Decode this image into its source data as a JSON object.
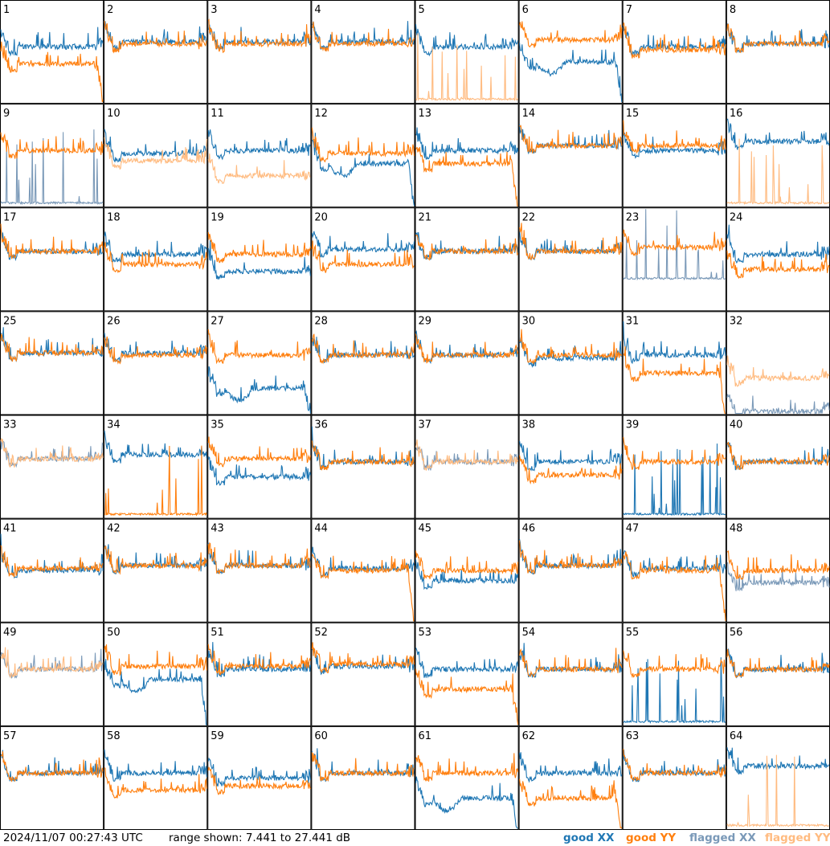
{
  "footer": {
    "timestamp": "2024/11/07 00:27:43 UTC",
    "range_label": "range shown:",
    "range_min": "7.441",
    "range_to": "to",
    "range_max": "27.441",
    "range_unit": "dB"
  },
  "legend": {
    "good_xx": "good XX",
    "good_yy": "good YY",
    "flagged_xx": "flagged XX",
    "flagged_yy": "flagged YY"
  },
  "colors": {
    "good_xx": "#1f77b4",
    "good_yy": "#ff7f0e",
    "flagged_xx": "#7a99b8",
    "flagged_yy": "#ffbb80"
  },
  "chart_data": {
    "type": "line",
    "layout": "small-multiples 8x8",
    "ylim": [
      7.441,
      27.441
    ],
    "y_unit": "dB",
    "grid": false,
    "legend_position": "bottom-right",
    "series_names": [
      "good XX",
      "good YY",
      "flagged XX",
      "flagged YY"
    ],
    "panels": [
      {
        "label": "1",
        "xx_state": "good",
        "yy_state": "good",
        "xx_level": 0.55,
        "yy_level": 0.38,
        "yy_dropout": true
      },
      {
        "label": "2",
        "xx_state": "good",
        "yy_state": "good",
        "xx_level": 0.6,
        "yy_level": 0.58
      },
      {
        "label": "3",
        "xx_state": "good",
        "yy_state": "good",
        "xx_level": 0.6,
        "yy_level": 0.58
      },
      {
        "label": "4",
        "xx_state": "good",
        "yy_state": "good",
        "xx_level": 0.6,
        "yy_level": 0.58
      },
      {
        "label": "5",
        "xx_state": "good",
        "yy_state": "flagged",
        "xx_level": 0.55,
        "yy_level": 0.02,
        "yy_spiky_floor": true
      },
      {
        "label": "6",
        "xx_state": "good",
        "yy_state": "good",
        "xx_level": 0.4,
        "yy_level": 0.62,
        "xx_dropout": true
      },
      {
        "label": "7",
        "xx_state": "good",
        "yy_state": "good",
        "xx_level": 0.55,
        "yy_level": 0.52
      },
      {
        "label": "8",
        "xx_state": "good",
        "yy_state": "good",
        "xx_level": 0.58,
        "yy_level": 0.58
      },
      {
        "label": "9",
        "xx_state": "flagged",
        "yy_state": "good",
        "xx_level": 0.02,
        "yy_level": 0.55,
        "xx_spiky_floor": true
      },
      {
        "label": "10",
        "xx_state": "good",
        "yy_state": "flagged",
        "xx_level": 0.52,
        "yy_level": 0.45
      },
      {
        "label": "11",
        "xx_state": "good",
        "yy_state": "flagged",
        "xx_level": 0.55,
        "yy_level": 0.3
      },
      {
        "label": "12",
        "xx_state": "good",
        "yy_state": "good",
        "xx_level": 0.42,
        "yy_level": 0.52,
        "xx_dropout": true
      },
      {
        "label": "13",
        "xx_state": "good",
        "yy_state": "good",
        "xx_level": 0.55,
        "yy_level": 0.42,
        "yy_dropout": true
      },
      {
        "label": "14",
        "xx_state": "good",
        "yy_state": "good",
        "xx_level": 0.6,
        "yy_level": 0.6
      },
      {
        "label": "15",
        "xx_state": "good",
        "yy_state": "good",
        "xx_level": 0.55,
        "yy_level": 0.6
      },
      {
        "label": "16",
        "xx_state": "good",
        "yy_state": "flagged",
        "xx_level": 0.64,
        "yy_level": 0.02,
        "yy_spiky_floor": true
      },
      {
        "label": "17",
        "xx_state": "good",
        "yy_state": "good",
        "xx_level": 0.58,
        "yy_level": 0.58
      },
      {
        "label": "18",
        "xx_state": "good",
        "yy_state": "good",
        "xx_level": 0.55,
        "yy_level": 0.45
      },
      {
        "label": "19",
        "xx_state": "good",
        "yy_state": "good",
        "xx_level": 0.38,
        "yy_level": 0.55
      },
      {
        "label": "20",
        "xx_state": "good",
        "yy_state": "good",
        "xx_level": 0.6,
        "yy_level": 0.45
      },
      {
        "label": "21",
        "xx_state": "good",
        "yy_state": "good",
        "xx_level": 0.58,
        "yy_level": 0.58
      },
      {
        "label": "22",
        "xx_state": "good",
        "yy_state": "good",
        "xx_level": 0.58,
        "yy_level": 0.58
      },
      {
        "label": "23",
        "xx_state": "flagged",
        "yy_state": "good",
        "xx_level": 0.3,
        "yy_level": 0.62,
        "xx_spiky_floor": true
      },
      {
        "label": "24",
        "xx_state": "good",
        "yy_state": "good",
        "xx_level": 0.55,
        "yy_level": 0.4
      },
      {
        "label": "25",
        "xx_state": "good",
        "yy_state": "good",
        "xx_level": 0.6,
        "yy_level": 0.6
      },
      {
        "label": "26",
        "xx_state": "good",
        "yy_state": "good",
        "xx_level": 0.6,
        "yy_level": 0.58
      },
      {
        "label": "27",
        "xx_state": "good",
        "yy_state": "good",
        "xx_level": 0.25,
        "yy_level": 0.58,
        "xx_dropout": true
      },
      {
        "label": "28",
        "xx_state": "good",
        "yy_state": "good",
        "xx_level": 0.58,
        "yy_level": 0.58
      },
      {
        "label": "29",
        "xx_state": "good",
        "yy_state": "good",
        "xx_level": 0.58,
        "yy_level": 0.58
      },
      {
        "label": "30",
        "xx_state": "good",
        "yy_state": "good",
        "xx_level": 0.55,
        "yy_level": 0.58
      },
      {
        "label": "31",
        "xx_state": "good",
        "yy_state": "good",
        "xx_level": 0.58,
        "yy_level": 0.4,
        "yy_dropout": true
      },
      {
        "label": "32",
        "xx_state": "flagged",
        "yy_state": "flagged",
        "xx_level": 0.02,
        "yy_level": 0.35
      },
      {
        "label": "33",
        "xx_state": "flagged",
        "yy_state": "flagged",
        "xx_level": 0.58,
        "yy_level": 0.58
      },
      {
        "label": "34",
        "xx_state": "good",
        "yy_state": "good",
        "xx_level": 0.62,
        "yy_level": 0.02,
        "yy_spiky_floor": true
      },
      {
        "label": "35",
        "xx_state": "good",
        "yy_state": "good",
        "xx_level": 0.4,
        "yy_level": 0.58
      },
      {
        "label": "36",
        "xx_state": "good",
        "yy_state": "good",
        "xx_level": 0.55,
        "yy_level": 0.55
      },
      {
        "label": "37",
        "xx_state": "flagged",
        "yy_state": "flagged",
        "xx_level": 0.55,
        "yy_level": 0.55
      },
      {
        "label": "38",
        "xx_state": "good",
        "yy_state": "good",
        "xx_level": 0.55,
        "yy_level": 0.42
      },
      {
        "label": "39",
        "xx_state": "good",
        "yy_state": "good",
        "xx_level": 0.02,
        "yy_level": 0.55,
        "xx_spiky_floor": true
      },
      {
        "label": "40",
        "xx_state": "good",
        "yy_state": "good",
        "xx_level": 0.55,
        "yy_level": 0.55
      },
      {
        "label": "41",
        "xx_state": "good",
        "yy_state": "good",
        "xx_level": 0.5,
        "yy_level": 0.52
      },
      {
        "label": "42",
        "xx_state": "good",
        "yy_state": "good",
        "xx_level": 0.55,
        "yy_level": 0.55
      },
      {
        "label": "43",
        "xx_state": "good",
        "yy_state": "good",
        "xx_level": 0.55,
        "yy_level": 0.55
      },
      {
        "label": "44",
        "xx_state": "good",
        "yy_state": "good",
        "xx_level": 0.52,
        "yy_level": 0.5,
        "yy_dropout": true
      },
      {
        "label": "45",
        "xx_state": "good",
        "yy_state": "good",
        "xx_level": 0.4,
        "yy_level": 0.5
      },
      {
        "label": "46",
        "xx_state": "good",
        "yy_state": "good",
        "xx_level": 0.55,
        "yy_level": 0.55
      },
      {
        "label": "47",
        "xx_state": "good",
        "yy_state": "good",
        "xx_level": 0.52,
        "yy_level": 0.5,
        "yy_dropout": true
      },
      {
        "label": "48",
        "xx_state": "flagged",
        "yy_state": "good",
        "xx_level": 0.38,
        "yy_level": 0.5
      },
      {
        "label": "49",
        "xx_state": "flagged",
        "yy_state": "flagged",
        "xx_level": 0.55,
        "yy_level": 0.55
      },
      {
        "label": "50",
        "xx_state": "good",
        "yy_state": "good",
        "xx_level": 0.45,
        "yy_level": 0.58,
        "xx_dropout": true
      },
      {
        "label": "51",
        "xx_state": "good",
        "yy_state": "good",
        "xx_level": 0.55,
        "yy_level": 0.58
      },
      {
        "label": "52",
        "xx_state": "good",
        "yy_state": "good",
        "xx_level": 0.58,
        "yy_level": 0.6
      },
      {
        "label": "53",
        "xx_state": "good",
        "yy_state": "good",
        "xx_level": 0.55,
        "yy_level": 0.35,
        "yy_dropout": true
      },
      {
        "label": "54",
        "xx_state": "good",
        "yy_state": "good",
        "xx_level": 0.55,
        "yy_level": 0.55
      },
      {
        "label": "55",
        "xx_state": "good",
        "yy_state": "good",
        "xx_level": 0.02,
        "yy_level": 0.55,
        "xx_spiky_floor": true
      },
      {
        "label": "56",
        "xx_state": "good",
        "yy_state": "good",
        "xx_level": 0.55,
        "yy_level": 0.55
      },
      {
        "label": "57",
        "xx_state": "good",
        "yy_state": "good",
        "xx_level": 0.55,
        "yy_level": 0.55
      },
      {
        "label": "58",
        "xx_state": "good",
        "yy_state": "good",
        "xx_level": 0.55,
        "yy_level": 0.38
      },
      {
        "label": "59",
        "xx_state": "good",
        "yy_state": "good",
        "xx_level": 0.5,
        "yy_level": 0.42
      },
      {
        "label": "60",
        "xx_state": "good",
        "yy_state": "good",
        "xx_level": 0.55,
        "yy_level": 0.55
      },
      {
        "label": "61",
        "xx_state": "good",
        "yy_state": "good",
        "xx_level": 0.3,
        "yy_level": 0.55,
        "xx_dropout": true
      },
      {
        "label": "62",
        "xx_state": "good",
        "yy_state": "good",
        "xx_level": 0.55,
        "yy_level": 0.3,
        "yy_dropout": true
      },
      {
        "label": "63",
        "xx_state": "good",
        "yy_state": "good",
        "xx_level": 0.55,
        "yy_level": 0.55
      },
      {
        "label": "64",
        "xx_state": "good",
        "yy_state": "flagged",
        "xx_level": 0.62,
        "yy_level": 0.02,
        "yy_spiky_floor": true
      }
    ]
  }
}
